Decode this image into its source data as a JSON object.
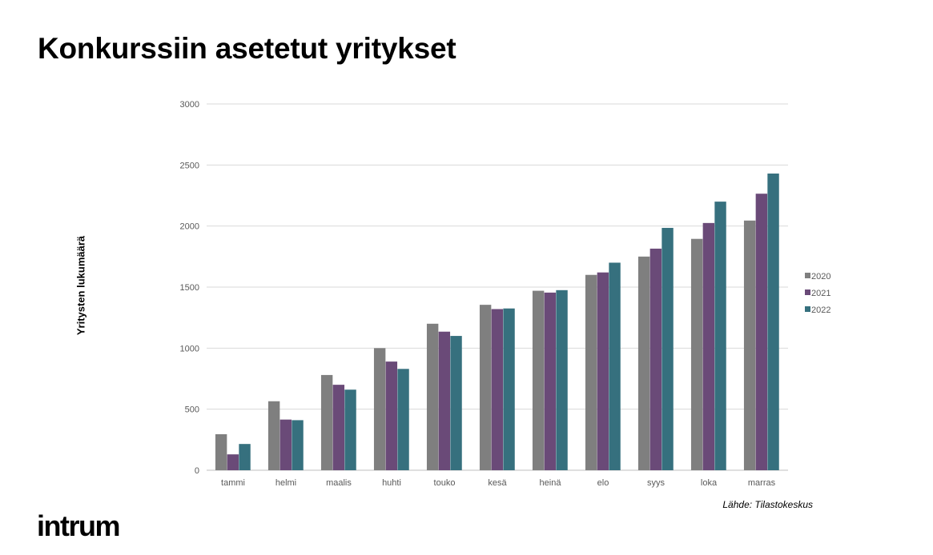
{
  "title": "Konkurssiin asetetut yritykset",
  "source": "Lähde: Tilastokeskus",
  "brand": "intrum",
  "chart_data": {
    "type": "bar",
    "title": "Konkurssiin asetetut yritykset",
    "ylabel": "Yritysten lukumäärä",
    "xlabel": "",
    "ylim": [
      0,
      3000
    ],
    "yticks": [
      0,
      500,
      1000,
      1500,
      2000,
      2500,
      3000
    ],
    "grid": true,
    "legend_position": "right",
    "categories": [
      "tammi",
      "helmi",
      "maalis",
      "huhti",
      "touko",
      "kesä",
      "heinä",
      "elo",
      "syys",
      "loka",
      "marras"
    ],
    "series": [
      {
        "name": "2020",
        "color": "#7f7f7f",
        "values": [
          295,
          565,
          780,
          1000,
          1200,
          1355,
          1470,
          1600,
          1750,
          1895,
          2045
        ]
      },
      {
        "name": "2021",
        "color": "#6a4a78",
        "values": [
          130,
          415,
          700,
          890,
          1135,
          1320,
          1455,
          1620,
          1815,
          2025,
          2265
        ]
      },
      {
        "name": "2022",
        "color": "#36707e",
        "values": [
          215,
          410,
          660,
          830,
          1100,
          1325,
          1475,
          1700,
          1985,
          2200,
          2430
        ]
      }
    ]
  }
}
